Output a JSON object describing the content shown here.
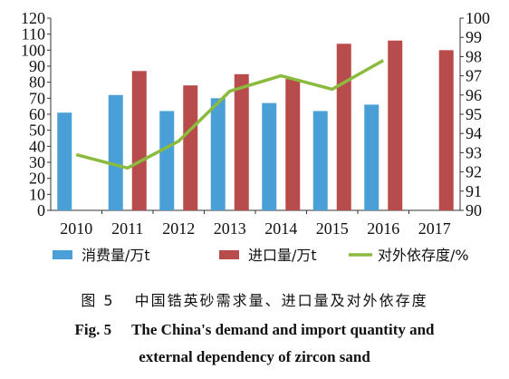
{
  "chart_data": {
    "type": "bar",
    "categories": [
      "2010",
      "2011",
      "2012",
      "2013",
      "2014",
      "2015",
      "2016",
      "2017"
    ],
    "series": [
      {
        "name": "消费量/万t",
        "type": "bar",
        "axis": "left",
        "values": [
          61,
          72,
          62,
          70,
          67,
          62,
          66,
          null
        ]
      },
      {
        "name": "进口量/万t",
        "type": "bar",
        "axis": "left",
        "values": [
          null,
          87,
          78,
          85,
          82,
          104,
          106,
          100
        ]
      },
      {
        "name": "对外依存度/%",
        "type": "line",
        "axis": "right",
        "values": [
          92.9,
          92.2,
          93.6,
          96.2,
          97.0,
          96.3,
          97.8,
          null
        ]
      }
    ],
    "y_left": {
      "min": 0,
      "max": 120,
      "step": 10,
      "ticks": [
        "0",
        "10",
        "20",
        "30",
        "40",
        "50",
        "60",
        "70",
        "80",
        "90",
        "100",
        "110",
        "120"
      ]
    },
    "y_right": {
      "min": 90,
      "max": 100,
      "step": 1,
      "ticks": [
        "90",
        "91",
        "92",
        "93",
        "94",
        "95",
        "96",
        "97",
        "98",
        "99",
        "100"
      ]
    },
    "grid": false,
    "legend_position": "bottom",
    "colors": {
      "consumption": "#4a9fd6",
      "import": "#b84b4b",
      "dependency": "#8bbb3e"
    }
  },
  "caption": {
    "zh_label": "图 5",
    "zh_text": "中国锆英砂需求量、进口量及对外依存度",
    "en_label": "Fig. 5",
    "en_line1": "The China's demand and import quantity and",
    "en_line2": "external dependency of zircon sand"
  }
}
